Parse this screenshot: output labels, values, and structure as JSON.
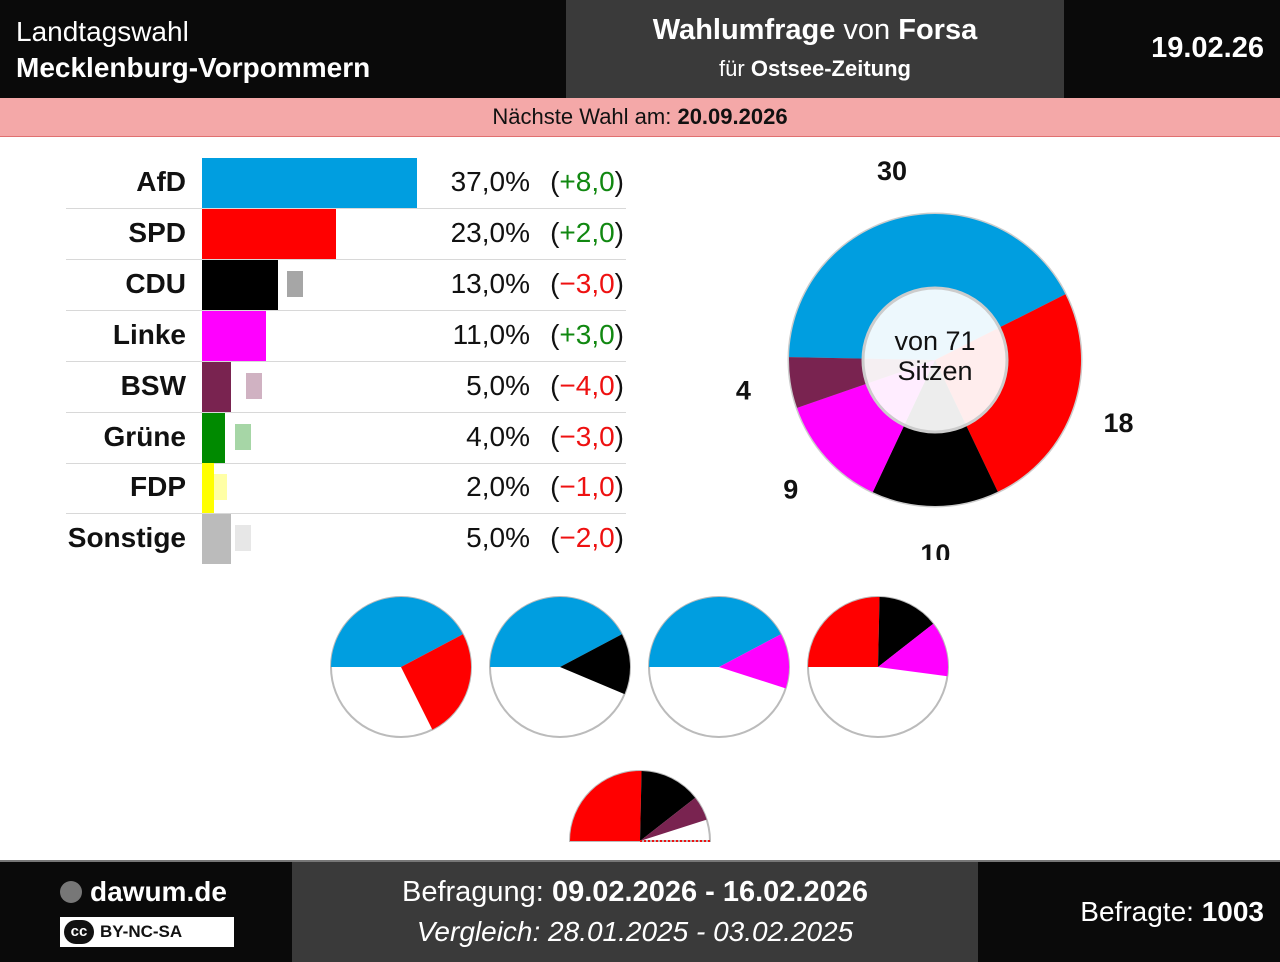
{
  "header": {
    "left_line1": "Landtagswahl",
    "left_line2": "Mecklenburg-Vorpommern",
    "mid_bold1": "Wahlumfrage",
    "mid_text1": " von ",
    "mid_bold2": "Forsa",
    "mid_text2": "für ",
    "mid_bold3": "Ostsee-Zeitung",
    "date": "19.02.26"
  },
  "next_election": {
    "label": "Nächste Wahl am: ",
    "date": "20.09.2026"
  },
  "chart_data": [
    {
      "type": "bar",
      "orientation": "horizontal",
      "categories": [
        "AfD",
        "SPD",
        "CDU",
        "Linke",
        "BSW",
        "Grüne",
        "FDP",
        "Sonstige"
      ],
      "values": [
        37.0,
        23.0,
        13.0,
        11.0,
        5.0,
        4.0,
        2.0,
        5.0
      ],
      "previous_values": [
        29.0,
        21.0,
        16.0,
        8.0,
        9.0,
        7.0,
        3.0,
        7.0
      ],
      "value_labels": [
        "37,0%",
        "23,0%",
        "13,0%",
        "11,0%",
        "5,0%",
        "4,0%",
        "2,0%",
        "5,0%"
      ],
      "change_labels": [
        "+8,0",
        "+2,0",
        "−3,0",
        "+3,0",
        "−4,0",
        "−3,0",
        "−1,0",
        "−2,0"
      ],
      "change_sign": [
        "pos",
        "pos",
        "neg",
        "pos",
        "neg",
        "neg",
        "neg",
        "neg"
      ],
      "colors": [
        "#009ee0",
        "#ff0000",
        "#000000",
        "#ff00ff",
        "#792350",
        "#008a00",
        "#ffff00",
        "#bbbbbb"
      ],
      "xlim": [
        0,
        37.0
      ]
    },
    {
      "type": "pie",
      "subtype": "donut",
      "categories": [
        "AfD",
        "SPD",
        "CDU",
        "Linke",
        "BSW"
      ],
      "values": [
        30,
        18,
        10,
        9,
        4
      ],
      "colors": [
        "#009ee0",
        "#ff0000",
        "#000000",
        "#ff00ff",
        "#792350"
      ],
      "center_line1": "von 71",
      "center_line2": "Sitzen"
    },
    {
      "type": "pie",
      "subtype": "coalitions",
      "majority": 36,
      "total": 71,
      "coalitions": [
        {
          "parties": [
            "AfD",
            "SPD"
          ],
          "seats": [
            30,
            18
          ],
          "colors": [
            "#009ee0",
            "#ff0000"
          ]
        },
        {
          "parties": [
            "AfD",
            "CDU"
          ],
          "seats": [
            30,
            10
          ],
          "colors": [
            "#009ee0",
            "#000000"
          ]
        },
        {
          "parties": [
            "AfD",
            "Linke"
          ],
          "seats": [
            30,
            9
          ],
          "colors": [
            "#009ee0",
            "#ff00ff"
          ]
        },
        {
          "parties": [
            "SPD",
            "CDU",
            "Linke"
          ],
          "seats": [
            18,
            10,
            9
          ],
          "colors": [
            "#ff0000",
            "#000000",
            "#ff00ff"
          ]
        },
        {
          "parties": [
            "SPD",
            "CDU",
            "BSW"
          ],
          "seats": [
            18,
            10,
            4
          ],
          "colors": [
            "#ff0000",
            "#000000",
            "#792350"
          ]
        }
      ]
    }
  ],
  "footer": {
    "brand": "dawum.de",
    "license_cc": "cc",
    "license": "BY-NC-SA",
    "survey_label": "Befragung: ",
    "survey_dates": "09.02.2026 - 16.02.2026",
    "compare_label": "Vergleich: ",
    "compare_dates": "28.01.2025 - 03.02.2025",
    "respondents_label": "Befragte: ",
    "respondents": "1003"
  }
}
